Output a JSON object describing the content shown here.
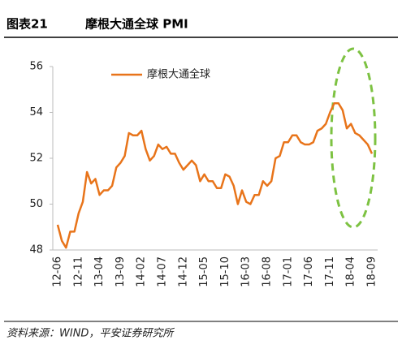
{
  "header": {
    "label": "图表21",
    "title": "摩根大通全球 PMI"
  },
  "chart_data": {
    "type": "line",
    "categories": [
      "12-06",
      null,
      null,
      null,
      null,
      "12-11",
      null,
      null,
      null,
      null,
      "13-04",
      null,
      null,
      null,
      null,
      "13-09",
      null,
      null,
      null,
      null,
      "14-02",
      null,
      null,
      null,
      null,
      "14-07",
      null,
      null,
      null,
      null,
      "14-12",
      null,
      null,
      null,
      null,
      "15-05",
      null,
      null,
      null,
      null,
      "15-10",
      null,
      null,
      null,
      null,
      "16-03",
      null,
      null,
      null,
      null,
      "16-08",
      null,
      null,
      null,
      null,
      "17-01",
      null,
      null,
      null,
      null,
      "17-06",
      null,
      null,
      null,
      null,
      "17-11",
      null,
      null,
      null,
      null,
      "18-04",
      null,
      null,
      null,
      null,
      "18-09"
    ],
    "series": [
      {
        "name": "摩根大通全球",
        "color": "#e8741a",
        "values": [
          49.1,
          48.4,
          48.1,
          48.8,
          48.8,
          49.6,
          50.1,
          51.4,
          50.9,
          51.1,
          50.4,
          50.6,
          50.6,
          50.8,
          51.6,
          51.8,
          52.1,
          53.1,
          53.0,
          53.0,
          53.2,
          52.4,
          51.9,
          52.1,
          52.6,
          52.4,
          52.5,
          52.2,
          52.2,
          51.8,
          51.5,
          51.7,
          51.9,
          51.7,
          51.0,
          51.3,
          51.0,
          51.0,
          50.7,
          50.7,
          51.3,
          51.2,
          50.8,
          50.0,
          50.6,
          50.1,
          50.0,
          50.4,
          50.4,
          51.0,
          50.8,
          51.0,
          52.0,
          52.1,
          52.7,
          52.7,
          53.0,
          53.0,
          52.7,
          52.6,
          52.6,
          52.7,
          53.2,
          53.3,
          53.5,
          54.0,
          54.4,
          54.4,
          54.1,
          53.3,
          53.5,
          53.1,
          53.0,
          52.8,
          52.6,
          52.2
        ]
      }
    ],
    "ylim": [
      48,
      56
    ],
    "yticks": [
      48,
      50,
      52,
      54,
      56
    ],
    "legend": "top-left"
  },
  "footer": {
    "source": "资料来源：WIND，平安证券研究所"
  }
}
